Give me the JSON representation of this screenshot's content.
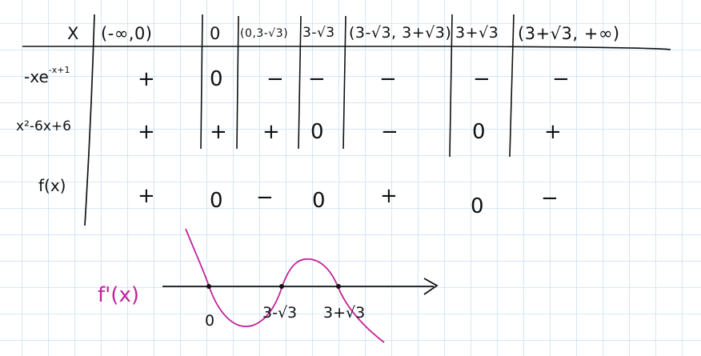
{
  "table": {
    "headers": [
      "X",
      "(-∞,0)",
      "0",
      "(0,3-√3)",
      "3-√3",
      "(3-√3, 3+√3)",
      "3+√3",
      "(3+√3, +∞)"
    ],
    "rows": [
      {
        "label_main": "-xe",
        "label_exp": "-x+1",
        "cells": [
          "+",
          "0",
          "−",
          "−",
          "−",
          "−",
          "−"
        ]
      },
      {
        "label_main": "x²-6x+6",
        "cells": [
          "+",
          "+",
          "+",
          "0",
          "−",
          "0",
          "+"
        ]
      },
      {
        "label_main": "f(x)",
        "cells": [
          "+",
          "0",
          "−",
          "0",
          "+",
          "0",
          "−"
        ]
      }
    ]
  },
  "sketch": {
    "label": "f'(x)",
    "roots": [
      "0",
      "3-√3",
      "3+√3"
    ],
    "axis_color": "#111111",
    "curve_color": "#c2239b"
  }
}
